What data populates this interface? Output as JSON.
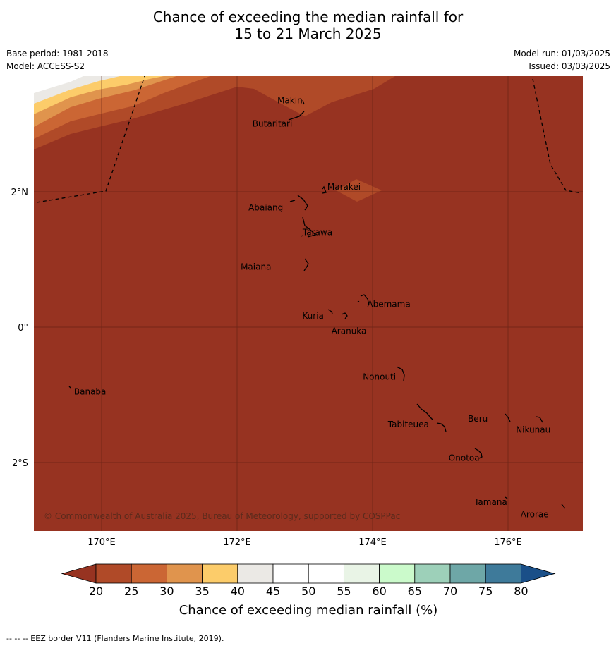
{
  "title": {
    "line1": "Chance of exceeding the median rainfall for",
    "line2": "15 to 21 March 2025"
  },
  "meta": {
    "base_period": "Base period: 1981-2018",
    "model": "Model: ACCESS-S2",
    "model_run": "Model run: 01/03/2025",
    "issued": "Issued: 03/03/2025"
  },
  "map": {
    "background_class": "20-25",
    "lon_labels": [
      "170°E",
      "172°E",
      "174°E",
      "176°E"
    ],
    "lat_labels": [
      "2°N",
      "0°",
      "2°S"
    ],
    "places": [
      {
        "name": "Makin",
        "lon": 172.98,
        "lat": 3.39
      },
      {
        "name": "Butaritari",
        "lon": 172.8,
        "lat": 3.07
      },
      {
        "name": "Marakei",
        "lon": 173.27,
        "lat": 2.0
      },
      {
        "name": "Abaiang",
        "lon": 172.96,
        "lat": 1.84
      },
      {
        "name": "Tarawa",
        "lon": 173.02,
        "lat": 1.42
      },
      {
        "name": "Maiana",
        "lon": 172.98,
        "lat": 0.93
      },
      {
        "name": "Abemama",
        "lon": 173.9,
        "lat": 0.38
      },
      {
        "name": "Kuria",
        "lon": 173.4,
        "lat": 0.22
      },
      {
        "name": "Aranuka",
        "lon": 173.6,
        "lat": 0.16
      },
      {
        "name": "Nonouti",
        "lon": 174.45,
        "lat": -0.65
      },
      {
        "name": "Banaba",
        "lon": 169.53,
        "lat": -0.86
      },
      {
        "name": "Beru",
        "lon": 175.98,
        "lat": -1.3
      },
      {
        "name": "Nikunau",
        "lon": 176.45,
        "lat": -1.35
      },
      {
        "name": "Tabiteuea",
        "lon": 174.8,
        "lat": -1.3
      },
      {
        "name": "Onotoa",
        "lon": 175.55,
        "lat": -1.82
      },
      {
        "name": "Tamana",
        "lon": 175.98,
        "lat": -2.5
      },
      {
        "name": "Arorae",
        "lon": 176.82,
        "lat": -2.64
      }
    ],
    "copyright": "© Commonwealth of Australia 2025, Bureau of Meteorology, supported by COSPPac"
  },
  "colorbar": {
    "ticks": [
      "20",
      "25",
      "30",
      "35",
      "40",
      "45",
      "50",
      "55",
      "60",
      "65",
      "70",
      "75",
      "80"
    ],
    "colors": {
      "below": "#973321",
      "bins": [
        "#b04a28",
        "#cb6634",
        "#e0944d",
        "#fccc6a",
        "#ebe9e5",
        "#ffffff",
        "#ffffff",
        "#e9f4e6",
        "#cbfacb",
        "#9dd0b9",
        "#6ea7a7",
        "#3e7a9a"
      ],
      "above": "#1a4f88"
    },
    "label": "Chance of exceeding median rainfall (%)"
  },
  "footnote": "--  --  -- EEZ border V11 (Flanders Marine Institute, 2019)."
}
